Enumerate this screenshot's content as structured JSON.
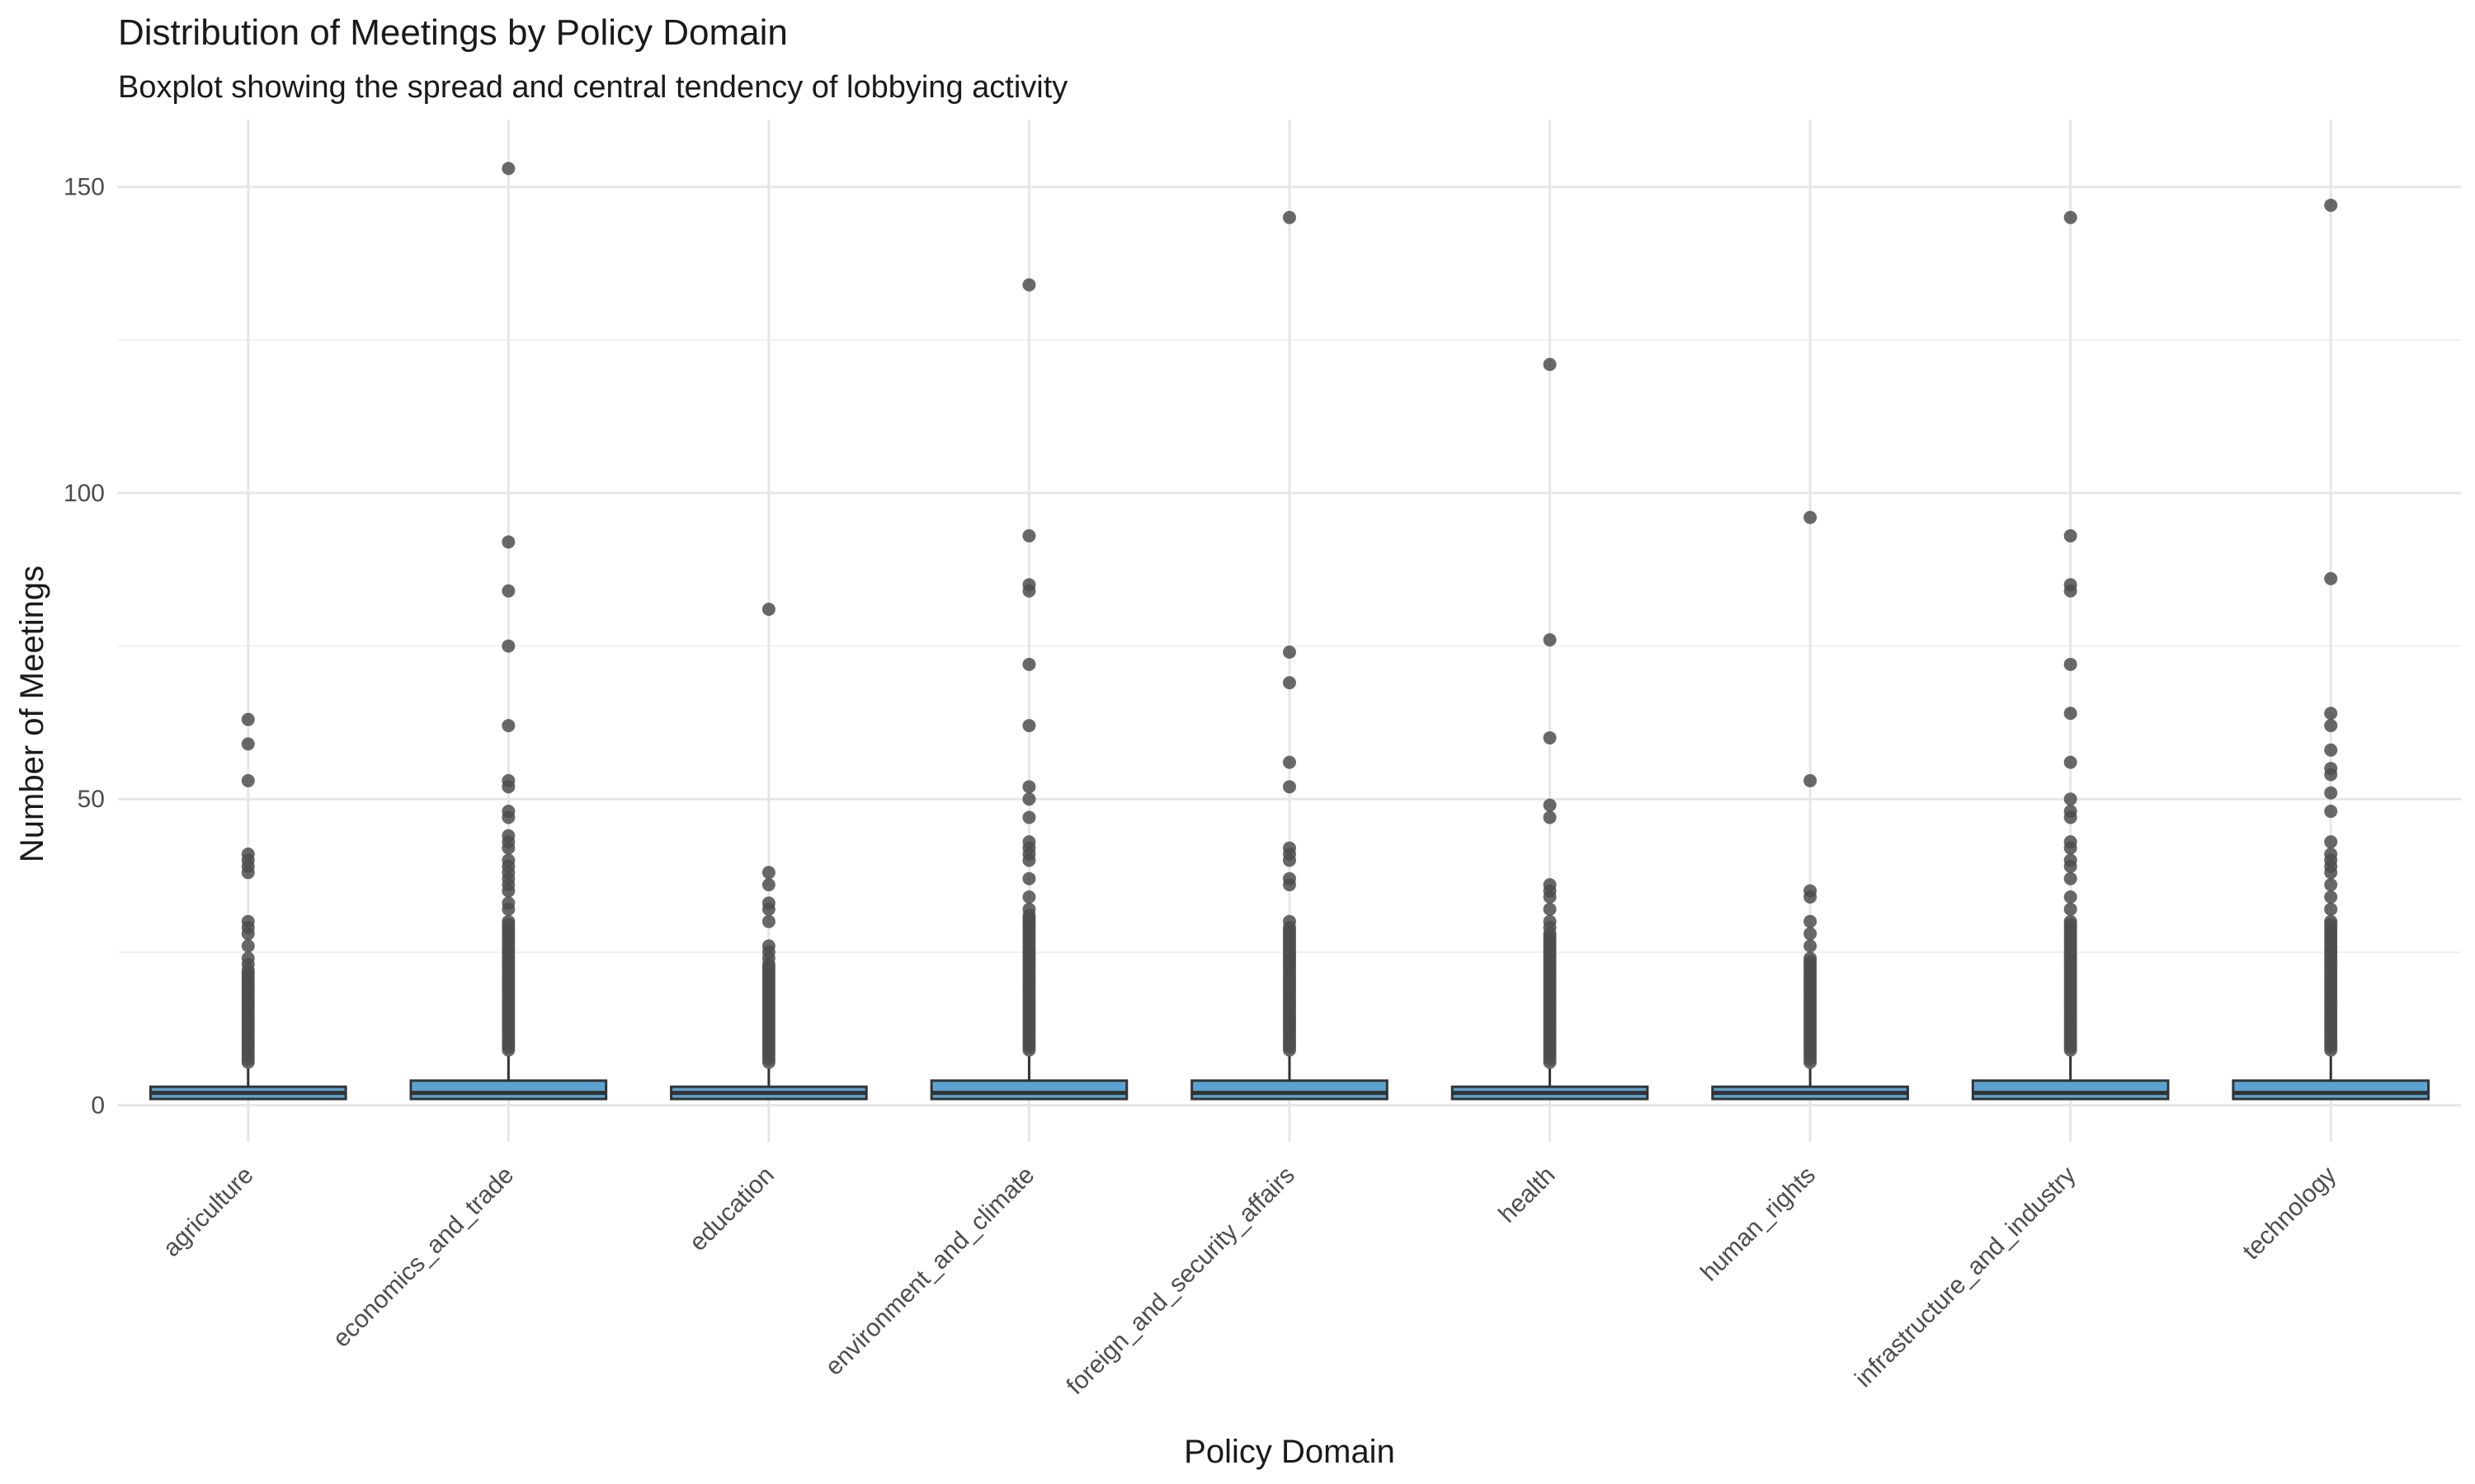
{
  "chart_data": {
    "type": "boxplot",
    "title": "Distribution of Meetings by Policy Domain",
    "subtitle": "Boxplot showing the spread and central tendency of lobbying activity",
    "xlabel": "Policy Domain",
    "ylabel": "Number of Meetings",
    "ylim": [
      -6,
      161
    ],
    "yticks": [
      0,
      50,
      100,
      150
    ],
    "grid": true,
    "legend": "none",
    "colors": {
      "box_fill": "#5ba3d0",
      "box_stroke": "#333333",
      "point": "#4d4d4d"
    },
    "categories": [
      "agriculture",
      "economics_and_trade",
      "education",
      "environment_and_climate",
      "foreign_and_security_affairs",
      "health",
      "human_rights",
      "infrastructure_and_industry",
      "technology"
    ],
    "series": [
      {
        "category": "agriculture",
        "q1": 1,
        "median": 2,
        "q3": 3,
        "whisker_low": 1,
        "whisker_high": 6,
        "outliers_range": [
          7,
          22
        ],
        "outliers": [
          23,
          24,
          26,
          28,
          29,
          30,
          38,
          39,
          40,
          41,
          53,
          59,
          63
        ]
      },
      {
        "category": "economics_and_trade",
        "q1": 1,
        "median": 2,
        "q3": 4,
        "whisker_low": 1,
        "whisker_high": 8,
        "outliers_range": [
          9,
          30
        ],
        "outliers": [
          32,
          33,
          35,
          36,
          37,
          38,
          39,
          40,
          42,
          43,
          44,
          47,
          48,
          52,
          53,
          62,
          75,
          84,
          92,
          153
        ]
      },
      {
        "category": "education",
        "q1": 1,
        "median": 2,
        "q3": 3,
        "whisker_low": 1,
        "whisker_high": 6,
        "outliers_range": [
          7,
          23
        ],
        "outliers": [
          24,
          25,
          26,
          30,
          32,
          33,
          36,
          38,
          81
        ]
      },
      {
        "category": "environment_and_climate",
        "q1": 1,
        "median": 2,
        "q3": 4,
        "whisker_low": 1,
        "whisker_high": 8,
        "outliers_range": [
          9,
          31
        ],
        "outliers": [
          32,
          34,
          37,
          40,
          41,
          42,
          43,
          47,
          50,
          52,
          62,
          72,
          84,
          85,
          93,
          134
        ]
      },
      {
        "category": "foreign_and_security_affairs",
        "q1": 1,
        "median": 2,
        "q3": 4,
        "whisker_low": 1,
        "whisker_high": 8,
        "outliers_range": [
          9,
          29
        ],
        "outliers": [
          30,
          36,
          37,
          40,
          41,
          42,
          52,
          56,
          69,
          74,
          145
        ]
      },
      {
        "category": "health",
        "q1": 1,
        "median": 2,
        "q3": 3,
        "whisker_low": 1,
        "whisker_high": 6,
        "outliers_range": [
          7,
          28
        ],
        "outliers": [
          29,
          30,
          32,
          34,
          35,
          36,
          47,
          49,
          60,
          76,
          121
        ]
      },
      {
        "category": "human_rights",
        "q1": 1,
        "median": 2,
        "q3": 3,
        "whisker_low": 1,
        "whisker_high": 6,
        "outliers_range": [
          7,
          24
        ],
        "outliers": [
          26,
          28,
          30,
          34,
          35,
          53,
          96
        ]
      },
      {
        "category": "infrastructure_and_industry",
        "q1": 1,
        "median": 2,
        "q3": 4,
        "whisker_low": 1,
        "whisker_high": 8,
        "outliers_range": [
          9,
          30
        ],
        "outliers": [
          32,
          34,
          37,
          39,
          40,
          42,
          43,
          47,
          48,
          50,
          56,
          64,
          72,
          84,
          85,
          93,
          145
        ]
      },
      {
        "category": "technology",
        "q1": 1,
        "median": 2,
        "q3": 4,
        "whisker_low": 1,
        "whisker_high": 8,
        "outliers_range": [
          9,
          30
        ],
        "outliers": [
          32,
          34,
          36,
          38,
          39,
          40,
          41,
          43,
          48,
          51,
          54,
          55,
          58,
          62,
          64,
          86,
          147
        ]
      }
    ]
  }
}
